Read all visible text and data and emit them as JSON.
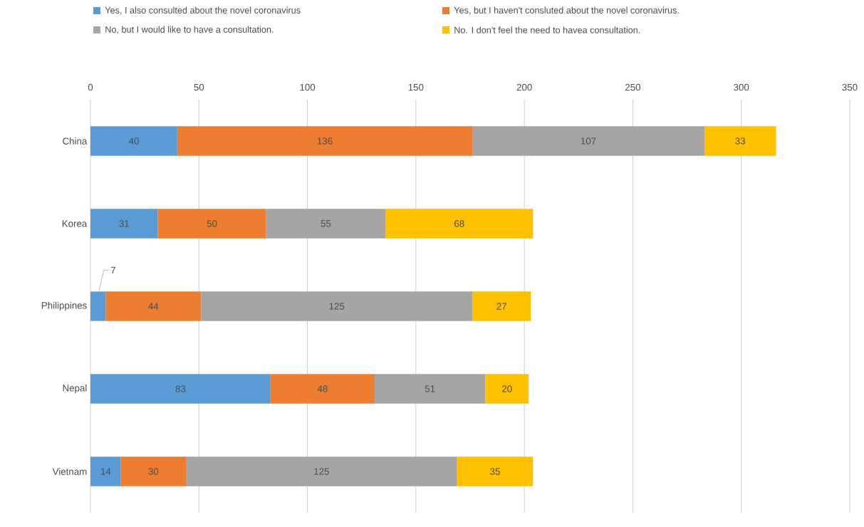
{
  "chart_data": {
    "type": "bar",
    "orientation": "horizontal",
    "stacked": true,
    "categories": [
      "China",
      "Korea",
      "Philippines",
      "Nepal",
      "Vietnam"
    ],
    "series": [
      {
        "name": "Yes, I also consulted about the novel coronavirus",
        "color": "#5b9bd5",
        "values": [
          40,
          31,
          7,
          83,
          14
        ]
      },
      {
        "name": "Yes, but I haven't consluted about the novel coronavirus.",
        "color": "#ed7d31",
        "values": [
          136,
          50,
          44,
          48,
          30
        ]
      },
      {
        "name": "No, but I would like to have a consultation.",
        "color": "#a5a5a5",
        "values": [
          107,
          55,
          125,
          51,
          125
        ]
      },
      {
        "name": "No. I don't feel the need to havea consultation.",
        "color": "#ffc000",
        "values": [
          33,
          68,
          27,
          20,
          35
        ]
      }
    ],
    "xlim": [
      0,
      350
    ],
    "xticks": [
      0,
      50,
      100,
      150,
      200,
      250,
      300,
      350
    ],
    "grid": "x",
    "legend": "top",
    "data_labels": true
  }
}
